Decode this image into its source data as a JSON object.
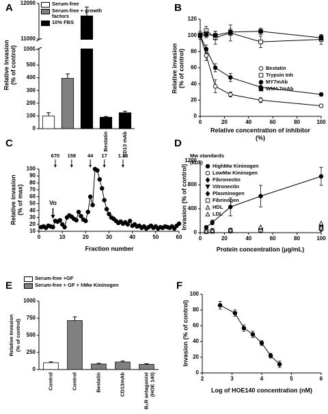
{
  "chart_data": [
    {
      "type": "bar",
      "panel": "A",
      "ylabel": [
        "Relative Invasion",
        "(% of control)"
      ],
      "categories": [
        null,
        null,
        null,
        "Bestatin",
        "CD13 mAb"
      ],
      "values": [
        100,
        395,
        11650,
        90,
        125
      ],
      "errors": [
        25,
        35,
        250,
        6,
        12
      ],
      "colors": [
        "#ffffff",
        "#808080",
        "#000000",
        "#000000",
        "#000000"
      ],
      "legend": [
        {
          "name": "Serum-free",
          "color": "#ffffff"
        },
        {
          "name": "Serum-free + growth factors",
          "color": "#808080"
        },
        {
          "name": "10% FBS",
          "color": "#000000"
        }
      ],
      "axis_segments": [
        {
          "ylim": [
            0,
            500
          ],
          "yticks": [
            0,
            100,
            200,
            300,
            400,
            500
          ]
        },
        {
          "ylim": [
            500,
            1000
          ],
          "yticks": [
            1000
          ]
        },
        {
          "ylim": [
            11000,
            12000
          ],
          "yticks": [
            11000,
            12000
          ]
        }
      ]
    },
    {
      "type": "scatter",
      "panel": "B",
      "ylabel": [
        "Relative invasion",
        "(% of control)"
      ],
      "xlabel": [
        "Relative concentration of inhibitor",
        "(%)"
      ],
      "x": [
        0,
        5,
        12.5,
        25,
        50,
        100
      ],
      "xlim": [
        0,
        100
      ],
      "xticks": [
        0,
        20,
        40,
        60,
        80,
        100
      ],
      "ylim": [
        0,
        120
      ],
      "yticks": [
        0,
        20,
        40,
        60,
        80,
        100,
        120
      ],
      "series": [
        {
          "name": "Bestatin",
          "marker": "open-circle",
          "curve": true,
          "values": [
            100,
            75,
            37,
            27,
            20,
            13
          ],
          "errors": [
            5,
            6,
            8,
            3,
            3,
            2
          ]
        },
        {
          "name": "Trypsin Inh",
          "marker": "open-square",
          "curve": true,
          "values": [
            100,
            106,
            97,
            103,
            92,
            95
          ],
          "errors": [
            3,
            5,
            8,
            10,
            7,
            6
          ]
        },
        {
          "name": "MY7mAb",
          "marker": "filled-circle",
          "curve": true,
          "values": [
            100,
            83,
            60,
            48,
            36,
            27
          ],
          "errors": [
            3,
            5,
            5,
            5,
            4,
            2
          ]
        },
        {
          "name": "WM4.7mAb",
          "marker": "filled-square",
          "curve": true,
          "values": [
            100,
            101,
            100,
            104,
            105,
            97
          ],
          "errors": [
            3,
            4,
            5,
            4,
            4,
            3
          ]
        }
      ]
    },
    {
      "type": "line",
      "panel": "C",
      "ylabel": [
        "Relative invasion",
        "(% of max)"
      ],
      "xlabel": "Fraction number",
      "marker": "filled-circle",
      "curve": true,
      "x": [
        1,
        2,
        3,
        4,
        5,
        6,
        7,
        8,
        9,
        10,
        11,
        12,
        13,
        14,
        15,
        16,
        17,
        18,
        19,
        20,
        21,
        22,
        23,
        24,
        25,
        26,
        27,
        28,
        29,
        30,
        31,
        32,
        33,
        34,
        35,
        36,
        37,
        38,
        39,
        40,
        41,
        42,
        43,
        44,
        45,
        46,
        47,
        48,
        49,
        50,
        51,
        52,
        53,
        54,
        55,
        56,
        57,
        58,
        59,
        60
      ],
      "values": [
        16,
        17,
        15,
        18,
        17,
        16,
        25,
        24,
        26,
        20,
        16,
        30,
        33,
        31,
        28,
        26,
        38,
        32,
        27,
        25,
        38,
        60,
        48,
        100,
        98,
        85,
        72,
        55,
        42,
        35,
        30,
        28,
        25,
        22,
        24,
        21,
        23,
        20,
        25,
        18,
        20,
        17,
        18,
        15,
        17,
        14,
        16,
        18,
        15,
        17,
        14,
        16,
        15,
        17,
        16,
        15,
        17,
        14,
        18,
        21
      ],
      "xlim": [
        0,
        60
      ],
      "xticks": [
        0,
        10,
        20,
        30,
        40,
        50,
        60
      ],
      "ylim": [
        10,
        100
      ],
      "yticks": [
        10,
        20,
        30,
        40,
        50,
        60,
        70,
        80,
        90,
        100
      ],
      "standards_title": [
        "Mw standards",
        "(kDa)"
      ],
      "standards": [
        {
          "label": "670",
          "x": 7
        },
        {
          "label": "158",
          "x": 14
        },
        {
          "label": "44",
          "x": 22
        },
        {
          "label": "17",
          "x": 28
        },
        {
          "label": "1.35",
          "x": 36
        }
      ],
      "vo": {
        "label": "Vo",
        "x": 6
      }
    },
    {
      "type": "scatter",
      "panel": "D",
      "ylabel": "Invasion (% of control)",
      "xlabel": "Protein concentration (μg/mL)",
      "x": [
        5,
        10,
        25,
        50,
        100
      ],
      "xlim": [
        0,
        100
      ],
      "xticks": [
        0,
        20,
        40,
        60,
        80,
        100
      ],
      "ylim": [
        0,
        1200
      ],
      "yticks": [
        0,
        400,
        800,
        1200
      ],
      "series": [
        {
          "name": "HighMw Kininogen",
          "marker": "filled-circle",
          "curve": true,
          "values": [
            90,
            170,
            430,
            610,
            940
          ],
          "errors": [
            20,
            40,
            150,
            180,
            150
          ]
        },
        {
          "name": "LowMw Kininogen",
          "marker": "open-circle",
          "values": [
            30,
            40,
            45,
            50,
            60
          ]
        },
        {
          "name": "Fibronectin",
          "marker": "filled-diamond",
          "values": [
            20,
            25,
            30,
            40,
            50
          ]
        },
        {
          "name": "Vitronectin",
          "marker": "filled-triangle-down",
          "values": [
            15,
            20,
            25,
            30,
            55
          ]
        },
        {
          "name": "Plasminogen",
          "marker": "filled-diamond",
          "values": [
            25,
            30,
            35,
            60,
            110
          ]
        },
        {
          "name": "Fibrinogen",
          "marker": "open-square",
          "values": [
            20,
            25,
            30,
            45,
            70
          ]
        },
        {
          "name": "HDL",
          "marker": "open-triangle",
          "values": [
            25,
            30,
            40,
            80,
            90
          ]
        },
        {
          "name": "LDL",
          "marker": "open-triangle",
          "values": [
            30,
            35,
            45,
            95,
            160
          ]
        }
      ]
    },
    {
      "type": "bar",
      "panel": "E",
      "ylabel": [
        "Relative Invasion",
        "(% of control)"
      ],
      "categories": [
        "Control",
        "Control",
        "Bestatin",
        "CD13mAb",
        "B₂R antagonist"
      ],
      "category_sublabels": [
        null,
        null,
        null,
        null,
        "(HOE 140)"
      ],
      "values": [
        100,
        715,
        80,
        110,
        75
      ],
      "errors": [
        12,
        55,
        10,
        15,
        10
      ],
      "colors": [
        "#ffffff",
        "#808080",
        "#808080",
        "#808080",
        "#808080"
      ],
      "legend": [
        {
          "name": "Serum-free +GF",
          "color": "#ffffff"
        },
        {
          "name": "Serum-free + GF + hMw Kininogen",
          "color": "#808080"
        }
      ],
      "ylim": [
        0,
        1000
      ],
      "yticks": [
        0,
        250,
        500,
        750,
        1000
      ]
    },
    {
      "type": "scatter",
      "panel": "F",
      "ylabel": "Invasion (% of control)",
      "xlabel": "Log of HOE140 concentration (nM)",
      "marker": "filled-circle",
      "curve": true,
      "x": [
        2.6,
        3.1,
        3.4,
        3.7,
        4.0,
        4.3,
        4.6
      ],
      "values": [
        86,
        76,
        57,
        49,
        38,
        22,
        11
      ],
      "errors": [
        5,
        4,
        4,
        4,
        3,
        3,
        4
      ],
      "xlim": [
        2,
        6
      ],
      "xticks": [
        2,
        3,
        4,
        5,
        6
      ],
      "ylim": [
        0,
        100
      ],
      "yticks": [
        0,
        20,
        40,
        60,
        80,
        100
      ]
    }
  ]
}
